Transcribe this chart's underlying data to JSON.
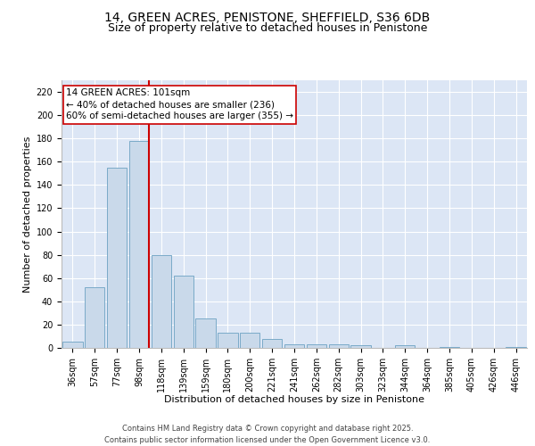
{
  "title_line1": "14, GREEN ACRES, PENISTONE, SHEFFIELD, S36 6DB",
  "title_line2": "Size of property relative to detached houses in Penistone",
  "xlabel": "Distribution of detached houses by size in Penistone",
  "ylabel": "Number of detached properties",
  "categories": [
    "36sqm",
    "57sqm",
    "77sqm",
    "98sqm",
    "118sqm",
    "139sqm",
    "159sqm",
    "180sqm",
    "200sqm",
    "221sqm",
    "241sqm",
    "262sqm",
    "282sqm",
    "303sqm",
    "323sqm",
    "344sqm",
    "364sqm",
    "385sqm",
    "405sqm",
    "426sqm",
    "446sqm"
  ],
  "values": [
    5,
    52,
    155,
    178,
    80,
    62,
    25,
    13,
    13,
    8,
    3,
    3,
    3,
    2,
    0,
    2,
    0,
    1,
    0,
    0,
    1
  ],
  "bar_color": "#c9d9ea",
  "bar_edge_color": "#7aaac8",
  "vline_x_index": 3,
  "vline_color": "#cc0000",
  "annotation_text": "14 GREEN ACRES: 101sqm\n← 40% of detached houses are smaller (236)\n60% of semi-detached houses are larger (355) →",
  "annotation_box_color": "#ffffff",
  "annotation_box_edge": "#cc0000",
  "ylim": [
    0,
    230
  ],
  "yticks": [
    0,
    20,
    40,
    60,
    80,
    100,
    120,
    140,
    160,
    180,
    200,
    220
  ],
  "background_color": "#dce6f5",
  "grid_color": "#ffffff",
  "footer_line1": "Contains HM Land Registry data © Crown copyright and database right 2025.",
  "footer_line2": "Contains public sector information licensed under the Open Government Licence v3.0.",
  "title_fontsize": 10,
  "subtitle_fontsize": 9,
  "axis_label_fontsize": 8,
  "tick_fontsize": 7,
  "annotation_fontsize": 7.5,
  "footer_fontsize": 6
}
